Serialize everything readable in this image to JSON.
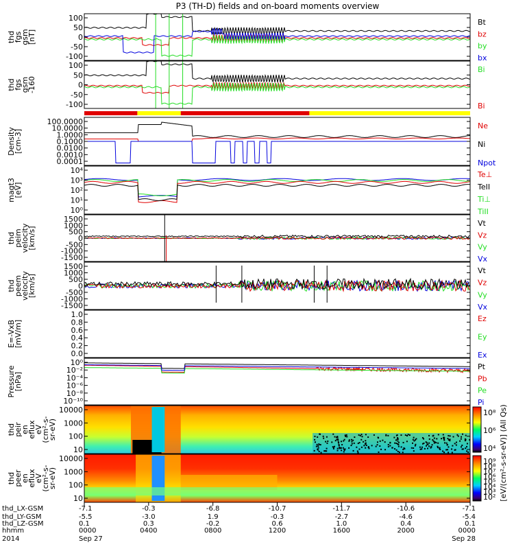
{
  "title": "P3 (TH-D) fields and on-board moments overview",
  "colors": {
    "black": "#000000",
    "red": "#e00000",
    "green": "#22dd22",
    "blue": "#0000dd",
    "yellow": "#ffff00"
  },
  "chart_data": {
    "type": "line",
    "panels": [
      {
        "id": "fgs",
        "ylabel": [
          "thd",
          "fgs",
          "gsm",
          "[nT]"
        ],
        "yticks": [
          "100",
          "50",
          "0",
          "-50",
          "-100"
        ],
        "ylim": [
          -100,
          100
        ],
        "legend": [
          {
            "label": "Bt",
            "color": "#000000"
          },
          {
            "label": "bz",
            "color": "#e00000"
          },
          {
            "label": "by",
            "color": "#22dd22"
          },
          {
            "label": "bx",
            "color": "#0000dd"
          }
        ]
      },
      {
        "id": "fgs-dsl",
        "ylabel": [
          "thd",
          "fgs",
          "gsm",
          "-160"
        ],
        "yticks": [
          "100",
          "50",
          "0",
          "-50",
          "-100"
        ],
        "ylim": [
          -120,
          100
        ],
        "legend": [
          {
            "label": "Bi",
            "color": "#22dd22"
          },
          {
            "label": "Bi",
            "color": "#e00000"
          }
        ]
      },
      {
        "id": "density",
        "ylabel": [
          "Density",
          "[cm-3]"
        ],
        "yticks": [
          "100.0000",
          "10.0000",
          "1.0000",
          "0.1000",
          "0.0100",
          "0.0010",
          "0.0001"
        ],
        "scale": "log",
        "legend": [
          {
            "label": "Ne",
            "color": "#e00000"
          },
          {
            "label": "Ni",
            "color": "#000000"
          },
          {
            "label": "Npot",
            "color": "#0000dd"
          }
        ]
      },
      {
        "id": "temperature",
        "ylabel": [
          "magt3",
          "[eV]"
        ],
        "yticks": [
          "10⁴",
          "10³",
          "10²",
          "10¹",
          "10⁰"
        ],
        "scale": "log",
        "legend": [
          {
            "label": "Te⊥",
            "color": "#e00000"
          },
          {
            "label": "TeII",
            "color": "#000000"
          },
          {
            "label": "Ti⊥",
            "color": "#22dd22"
          },
          {
            "label": "TiII",
            "color": "#22dd22"
          }
        ]
      },
      {
        "id": "peim",
        "ylabel": [
          "thd",
          "peim",
          "velocity",
          "[km/s]"
        ],
        "yticks": [
          "1500",
          "1000",
          "500",
          "0",
          "-500",
          "-1000",
          "-1500"
        ],
        "ylim": [
          -1500,
          1500
        ],
        "legend": [
          {
            "label": "Vt",
            "color": "#000000"
          },
          {
            "label": "Vz",
            "color": "#e00000"
          },
          {
            "label": "Vy",
            "color": "#22dd22"
          },
          {
            "label": "Vx",
            "color": "#0000dd"
          }
        ]
      },
      {
        "id": "peem",
        "ylabel": [
          "thd",
          "peem",
          "velocity",
          "[km/s]"
        ],
        "yticks": [
          "1500",
          "1000",
          "500",
          "0",
          "-500",
          "-1000",
          "-1500"
        ],
        "ylim": [
          -1500,
          1500
        ],
        "legend": [
          {
            "label": "Vt",
            "color": "#000000"
          },
          {
            "label": "Vz",
            "color": "#e00000"
          },
          {
            "label": "Vy",
            "color": "#22dd22"
          },
          {
            "label": "Vx",
            "color": "#0000dd"
          }
        ]
      },
      {
        "id": "efield",
        "ylabel": [
          "E=-VxB",
          "[mV/m]"
        ],
        "yticks": [
          "1.0",
          "0.8",
          "0.6",
          "0.4",
          "0.2",
          "0.0"
        ],
        "ylim": [
          0,
          1
        ],
        "legend": [
          {
            "label": "Ez",
            "color": "#e00000"
          },
          {
            "label": "Ey",
            "color": "#22dd22"
          },
          {
            "label": "Ex",
            "color": "#0000dd"
          }
        ]
      },
      {
        "id": "pressure",
        "ylabel": [
          "Pressure",
          "[nPa]"
        ],
        "yticks": [
          "10⁰",
          "10⁻²",
          "10⁻⁴",
          "10⁻⁶",
          "10⁻⁸",
          "10⁻¹⁰"
        ],
        "scale": "log",
        "legend": [
          {
            "label": "Pt",
            "color": "#000000"
          },
          {
            "label": "Pb",
            "color": "#e00000"
          },
          {
            "label": "Pe",
            "color": "#22dd22"
          },
          {
            "label": "Pi",
            "color": "#0000dd"
          }
        ]
      },
      {
        "id": "peir",
        "ylabel": [
          "thd",
          "peir",
          "en",
          "eflux",
          "eV",
          "(cm²-s-",
          "sr-eV)"
        ],
        "yticks": [
          "10000",
          "1000",
          "100",
          "10"
        ],
        "scale": "log",
        "spectrogram": true,
        "colorbar_ticks": [
          "10⁸",
          "10⁶",
          "10⁴"
        ]
      },
      {
        "id": "peer",
        "ylabel": [
          "thd",
          "peer",
          "en",
          "eflux",
          "eV",
          "(cm²-s-",
          "sr-eV)"
        ],
        "yticks": [
          "10000",
          "1000",
          "100",
          "10"
        ],
        "scale": "log",
        "spectrogram": true,
        "colorbar_ticks": [
          "10⁹",
          "10⁸",
          "10⁷",
          "10⁶",
          "10⁵",
          "10⁴",
          "10³",
          "10²"
        ]
      }
    ],
    "colorbar_label": "[eV/(cm²-s-sr-eV)] (All Qs)",
    "x_footer": {
      "row_labels": [
        "thd_LX-GSM",
        "thd_LY-GSM",
        "thd_LZ-GSM",
        "hhmm",
        "2014"
      ],
      "columns": [
        {
          "lx": "-7.1",
          "ly": "-5.5",
          "lz": "0.1",
          "hhmm": "0000",
          "date": "Sep 27"
        },
        {
          "lx": "-0.3",
          "ly": "-3.0",
          "lz": "0.3",
          "hhmm": "0400",
          "date": ""
        },
        {
          "lx": "-6.8",
          "ly": "1.9",
          "lz": "-0.2",
          "hhmm": "0800",
          "date": ""
        },
        {
          "lx": "-10.7",
          "ly": "-0.3",
          "lz": "0.6",
          "hhmm": "1200",
          "date": ""
        },
        {
          "lx": "-11.7",
          "ly": "-2.7",
          "lz": "1.0",
          "hhmm": "1600",
          "date": ""
        },
        {
          "lx": "-10.6",
          "ly": "-4.6",
          "lz": "0.4",
          "hhmm": "2000",
          "date": ""
        },
        {
          "lx": "-7.1",
          "ly": "-5.4",
          "lz": "0.1",
          "hhmm": "0000",
          "date": "Sep 28"
        }
      ]
    },
    "mode_bar": [
      {
        "from": 0,
        "to": 3.3,
        "color": "#e00000"
      },
      {
        "from": 3.3,
        "to": 6.0,
        "color": "#ffff00"
      },
      {
        "from": 6.0,
        "to": 14.0,
        "color": "#e00000"
      },
      {
        "from": 14.0,
        "to": 24.0,
        "color": "#ffff00"
      }
    ]
  }
}
